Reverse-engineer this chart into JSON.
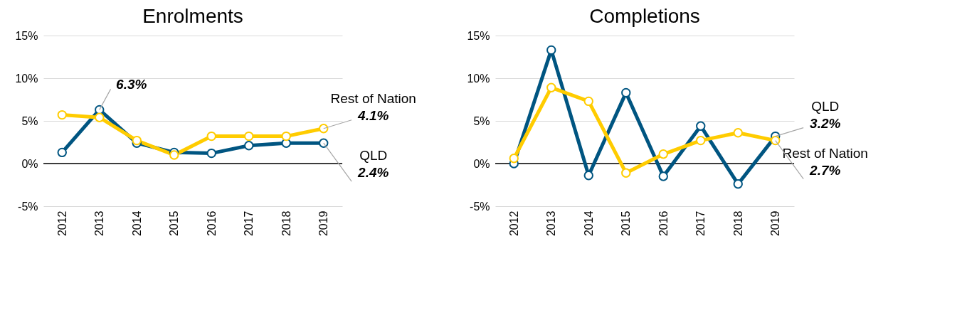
{
  "chart_data": [
    {
      "type": "line",
      "title": "Enrolments",
      "categories": [
        "2012",
        "2013",
        "2014",
        "2015",
        "2016",
        "2017",
        "2018",
        "2019"
      ],
      "series": [
        {
          "name": "QLD",
          "color": "#005581",
          "values": [
            1.3,
            6.3,
            2.4,
            1.3,
            1.2,
            2.1,
            2.4,
            2.4
          ]
        },
        {
          "name": "Rest of Nation",
          "color": "#ffcc00",
          "values": [
            5.7,
            5.4,
            2.7,
            1.0,
            3.2,
            3.2,
            3.2,
            4.1
          ]
        }
      ],
      "ylim": [
        -5,
        15
      ],
      "yticks": [
        {
          "value": -5,
          "label": "-5%"
        },
        {
          "value": 0,
          "label": "0%"
        },
        {
          "value": 5,
          "label": "5%"
        },
        {
          "value": 10,
          "label": "10%"
        },
        {
          "value": 15,
          "label": "15%"
        }
      ],
      "grid": "y",
      "marker": "circle",
      "line_style": "solid",
      "legend": false,
      "ref_lines": [
        {
          "axis": "y",
          "value": 0,
          "color": "#000000"
        }
      ],
      "annotations": [
        {
          "text": "6.3%",
          "x": "2013",
          "y": 6.3
        },
        {
          "text": "2.4%",
          "x": "2019",
          "y": 2.4
        },
        {
          "text": "4.1%",
          "x": "2019",
          "y": 4.1
        }
      ]
    },
    {
      "type": "line",
      "title": "Completions",
      "categories": [
        "2012",
        "2013",
        "2014",
        "2015",
        "2016",
        "2017",
        "2018",
        "2019"
      ],
      "series": [
        {
          "name": "QLD",
          "color": "#005581",
          "values": [
            0.0,
            13.3,
            -1.4,
            8.3,
            -1.5,
            4.4,
            -2.4,
            3.2
          ]
        },
        {
          "name": "Rest of Nation",
          "color": "#ffcc00",
          "values": [
            0.6,
            8.9,
            7.3,
            -1.1,
            1.1,
            2.7,
            3.6,
            2.7
          ]
        }
      ],
      "ylim": [
        -5,
        15
      ],
      "yticks": [
        {
          "value": -5,
          "label": "-5%"
        },
        {
          "value": 0,
          "label": "0%"
        },
        {
          "value": 5,
          "label": "5%"
        },
        {
          "value": 10,
          "label": "10%"
        },
        {
          "value": 15,
          "label": "15%"
        }
      ],
      "grid": "y",
      "marker": "circle",
      "line_style": "solid",
      "legend": false,
      "ref_lines": [
        {
          "axis": "y",
          "value": 0,
          "color": "#000000"
        }
      ],
      "annotations": [
        {
          "text": "3.2%",
          "x": "2019",
          "y": 3.2
        },
        {
          "text": "2.7%",
          "x": "2019",
          "y": 2.7
        }
      ]
    }
  ]
}
